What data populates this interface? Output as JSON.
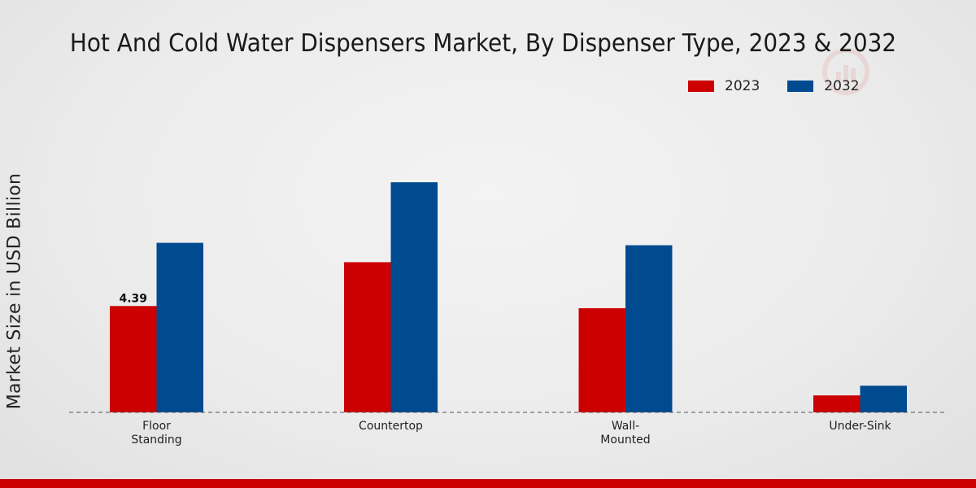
{
  "chart_data": {
    "type": "bar",
    "title": "Hot And Cold Water Dispensers Market, By Dispenser Type, 2023 & 2032",
    "ylabel": "Market Size in USD Billion",
    "xlabel": "",
    "categories": [
      "Floor\nStanding",
      "Countertop",
      "Wall-\nMounted",
      "Under-Sink"
    ],
    "series": [
      {
        "name": "2023",
        "color": "#cc0000",
        "values": [
          4.39,
          6.2,
          4.3,
          0.7
        ]
      },
      {
        "name": "2032",
        "color": "#004a8f",
        "values": [
          7.0,
          9.5,
          6.9,
          1.1
        ]
      }
    ],
    "data_labels": [
      {
        "series": 0,
        "index": 0,
        "text": "4.39"
      }
    ],
    "ylim": [
      0,
      13.5
    ],
    "grid": false,
    "legend_position": "top-right"
  }
}
